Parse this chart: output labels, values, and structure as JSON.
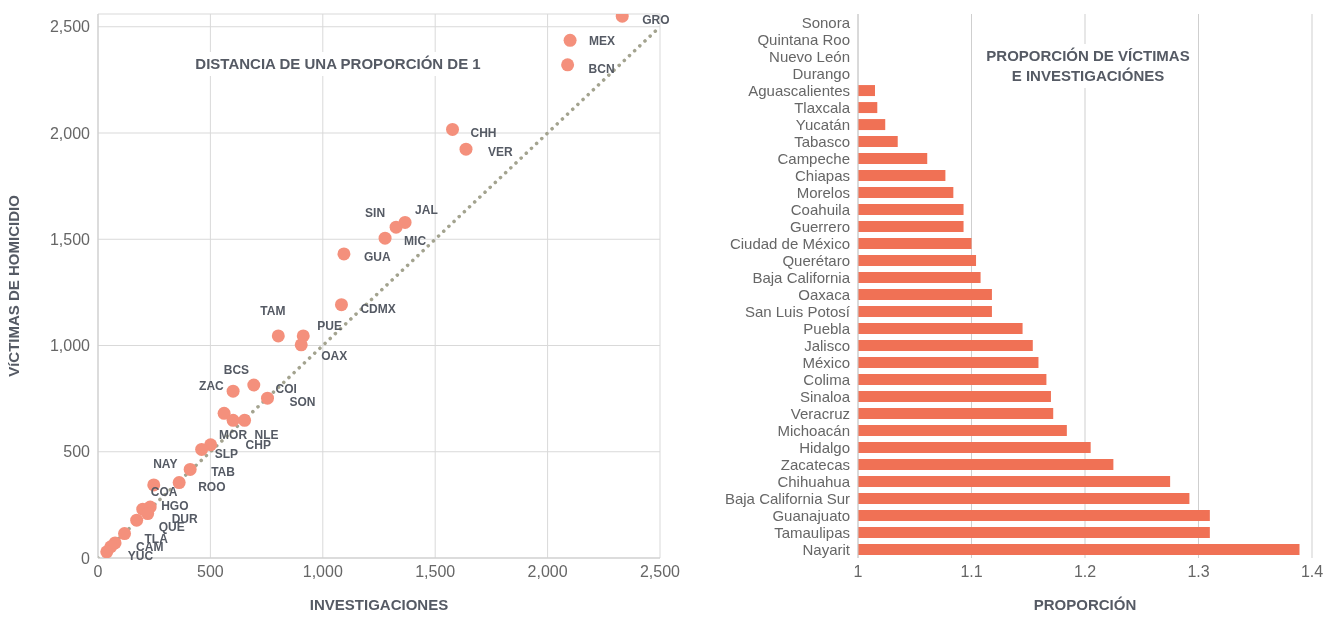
{
  "chart_data": [
    {
      "type": "scatter",
      "title": "DISTANCIA DE UNA PROPORCIÓN DE 1",
      "xlabel": "INVESTIGACIONES",
      "ylabel": "VíCTIMAS DE HOMICIDIO",
      "xlim": [
        0,
        2500
      ],
      "ylim": [
        0,
        2560
      ],
      "xticks": [
        0,
        500,
        {
          "value": 1000,
          "label": "1,000"
        },
        {
          "value": 1500,
          "label": "1,500"
        },
        {
          "value": 2000,
          "label": "2,000"
        },
        {
          "value": 2500,
          "label": "2,500"
        }
      ],
      "yticks": [
        0,
        500,
        {
          "value": 1000,
          "label": "1,000"
        },
        {
          "value": 1500,
          "label": "1,500"
        },
        {
          "value": 2000,
          "label": "2,000"
        },
        {
          "value": 2500,
          "label": "2,500"
        }
      ],
      "grid": true,
      "marker": "circle",
      "series": [
        {
          "type": "scatter",
          "color": "#f4907c",
          "x": [
            2332,
            2100,
            2089,
            1577,
            1637,
            1366,
            1326,
            1277,
            1094,
            1083,
            802,
            913,
            904,
            693,
            601,
            754,
            561,
            601,
            652,
            501,
            461,
            410,
            248,
            361,
            232,
            199,
            221,
            172,
            118,
            76,
            57,
            39
          ],
          "values": [
            2550,
            2436,
            2321,
            2017,
            1924,
            1579,
            1557,
            1505,
            1431,
            1192,
            1045,
            1045,
            1003,
            814,
            785,
            752,
            681,
            648,
            648,
            533,
            511,
            417,
            344,
            355,
            240,
            230,
            209,
            178,
            115,
            71,
            53,
            29
          ]
        },
        {
          "type": "line",
          "color": "#a3a38f",
          "line_style": "dotted",
          "marker": "none",
          "x": [
            0,
            2500
          ],
          "values": [
            0,
            2500
          ]
        }
      ],
      "annotations": [
        {
          "text": "GRO",
          "x": 2332,
          "y": 2550
        },
        {
          "text": "MEX",
          "x": 2100,
          "y": 2436
        },
        {
          "text": "BCN",
          "x": 2089,
          "y": 2321
        },
        {
          "text": "CHH",
          "x": 1577,
          "y": 2017
        },
        {
          "text": "VER",
          "x": 1637,
          "y": 1924
        },
        {
          "text": "SIN",
          "x": 1326,
          "y": 1557
        },
        {
          "text": "JAL",
          "x": 1366,
          "y": 1579
        },
        {
          "text": "MIC",
          "x": 1277,
          "y": 1505
        },
        {
          "text": "GUA",
          "x": 1094,
          "y": 1431
        },
        {
          "text": "TAM",
          "x": 802,
          "y": 1045
        },
        {
          "text": "PUE",
          "x": 913,
          "y": 1045
        },
        {
          "text": "CDMX",
          "x": 1083,
          "y": 1192
        },
        {
          "text": "OAX",
          "x": 904,
          "y": 1003
        },
        {
          "text": "BCS",
          "x": 693,
          "y": 814
        },
        {
          "text": "ZAC",
          "x": 601,
          "y": 785
        },
        {
          "text": "COI",
          "x": 754,
          "y": 752
        },
        {
          "text": "SON",
          "x": 754,
          "y": 752
        },
        {
          "text": "MOR",
          "x": 601,
          "y": 648
        },
        {
          "text": "NLE",
          "x": 652,
          "y": 648
        },
        {
          "text": "SLP",
          "x": 461,
          "y": 511
        },
        {
          "text": "CHP",
          "x": 501,
          "y": 533
        },
        {
          "text": "NAY",
          "x": 410,
          "y": 417
        },
        {
          "text": "TAB",
          "x": 410,
          "y": 417
        },
        {
          "text": "ROO",
          "x": 361,
          "y": 355
        },
        {
          "text": "HGO",
          "x": 232,
          "y": 240
        },
        {
          "text": "COA",
          "x": 199,
          "y": 230
        },
        {
          "text": "DUR",
          "x": 221,
          "y": 209
        },
        {
          "text": "QUE",
          "x": 172,
          "y": 178
        },
        {
          "text": "TLA",
          "x": 118,
          "y": 115
        },
        {
          "text": "CAM",
          "x": 76,
          "y": 71
        },
        {
          "text": "YUC",
          "x": 57,
          "y": 53
        }
      ]
    },
    {
      "type": "bar",
      "orientation": "horizontal",
      "title": "PROPORCIÓN DE VÍCTIMAS\nE INVESTIGACIÓNES",
      "xlabel": "PROPORCIÓN",
      "xlim": [
        1,
        1.4
      ],
      "xticks": [
        1,
        1.1,
        1.2,
        1.3,
        1.4
      ],
      "grid": "x",
      "color": "#f07155",
      "categories": [
        "Sonora",
        "Quintana Roo",
        "Nuevo León",
        "Durango",
        "Aguascalientes",
        "Tlaxcala",
        "Yucatán",
        "Tabasco",
        "Campeche",
        "Chiapas",
        "Morelos",
        "Coahuila",
        "Guerrero",
        "Ciudad de México",
        "Querétaro",
        "Baja California",
        "Oaxaca",
        "San Luis Potosí",
        "Puebla",
        "Jalisco",
        "México",
        "Colima",
        "Sinaloa",
        "Veracruz",
        "Michoacán",
        "Hidalgo",
        "Zacatecas",
        "Chihuahua",
        "Baja California Sur",
        "Guanajuato",
        "Tamaulipas",
        "Nayarit"
      ],
      "values": [
        null,
        null,
        null,
        null,
        1.015,
        1.017,
        1.024,
        1.035,
        1.061,
        1.077,
        1.084,
        1.093,
        1.093,
        1.1,
        1.104,
        1.108,
        1.118,
        1.118,
        1.145,
        1.154,
        1.159,
        1.166,
        1.17,
        1.172,
        1.184,
        1.205,
        1.225,
        1.275,
        1.292,
        1.31,
        1.31,
        1.389
      ]
    }
  ]
}
